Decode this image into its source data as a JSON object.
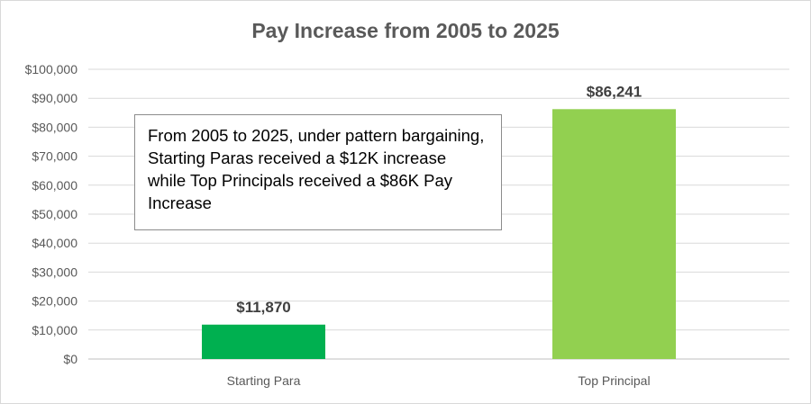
{
  "chart_data": {
    "type": "bar",
    "title": "Pay Increase from 2005 to 2025",
    "categories": [
      "Starting Para",
      "Top Principal"
    ],
    "values": [
      11870,
      86241
    ],
    "data_labels": [
      "$11,870",
      "$86,241"
    ],
    "colors": [
      "#00b050",
      "#92d050"
    ],
    "ylim": [
      0,
      100000
    ],
    "yticks": [
      0,
      10000,
      20000,
      30000,
      40000,
      50000,
      60000,
      70000,
      80000,
      90000,
      100000
    ],
    "ytick_labels": [
      "$0",
      "$10,000",
      "$20,000",
      "$30,000",
      "$40,000",
      "$50,000",
      "$60,000",
      "$70,000",
      "$80,000",
      "$90,000",
      "$100,000"
    ],
    "grid": true,
    "legend": "none",
    "annotation": "From 2005 to 2025, under pattern bargaining, Starting Paras received a $12K increase while Top Principals received a $86K Pay Increase"
  }
}
